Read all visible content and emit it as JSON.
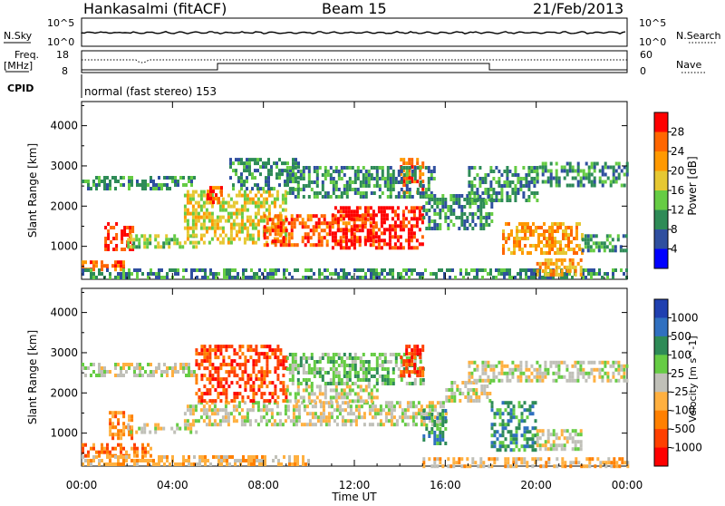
{
  "header": {
    "station": "Hankasalmi (fitACF)",
    "beam": "Beam 15",
    "date": "21/Feb/2013"
  },
  "aux_panels": {
    "nsky_label": "N.Sky",
    "nsearch_label": "N.Search",
    "freq_label_top": "Freq.",
    "freq_label_unit": "[MHz]",
    "nave_label": "Nave",
    "cpid_label": "CPID",
    "cpid_mode": "normal (fast stereo) 153",
    "noise_ticks_left": [
      "10^5",
      "10^0"
    ],
    "noise_ticks_right": [
      "10^5",
      "10^0"
    ],
    "freq_ticks_left": [
      "18",
      "8"
    ],
    "nave_ticks_right": [
      "60",
      "0"
    ]
  },
  "chart_data": [
    {
      "type": "heatmap",
      "panel": "power",
      "ylabel": "Slant Range [km]",
      "xlabel": "Time UT",
      "ylim": [
        180,
        4600
      ],
      "yticks": [
        1000,
        2000,
        3000,
        4000
      ],
      "xlim": [
        0,
        24
      ],
      "xticks": [
        "00:00",
        "04:00",
        "08:00",
        "12:00",
        "16:00",
        "20:00",
        "00:00"
      ],
      "colorbar": {
        "label": "Power [dB]",
        "ticks": [
          "4",
          "8",
          "12",
          "16",
          "20",
          "24",
          "28"
        ],
        "colors": [
          "#0000ff",
          "#2f4f9f",
          "#2e8b57",
          "#66cc44",
          "#e6c832",
          "#ff9900",
          "#ff6600",
          "#ff0000"
        ]
      },
      "scatter_bands": [
        {
          "t0": 0.0,
          "t1": 5.0,
          "r0": 2400,
          "r1": 2750,
          "level": 2
        },
        {
          "t0": 1.0,
          "t1": 2.3,
          "r0": 900,
          "r1": 1600,
          "level": 7
        },
        {
          "t0": 0.0,
          "t1": 2.0,
          "r0": 380,
          "r1": 650,
          "level": 6
        },
        {
          "t0": 2.0,
          "t1": 5.0,
          "r0": 950,
          "r1": 1300,
          "level": 3
        },
        {
          "t0": 4.5,
          "t1": 9.0,
          "r0": 1100,
          "r1": 2400,
          "level": 4
        },
        {
          "t0": 5.5,
          "t1": 6.2,
          "r0": 2100,
          "r1": 2500,
          "level": 6
        },
        {
          "t0": 6.5,
          "t1": 9.5,
          "r0": 2400,
          "r1": 3200,
          "level": 2
        },
        {
          "t0": 8.0,
          "t1": 13.0,
          "r0": 1000,
          "r1": 1800,
          "level": 6
        },
        {
          "t0": 11.0,
          "t1": 15.0,
          "r0": 1000,
          "r1": 2000,
          "level": 7
        },
        {
          "t0": 14.0,
          "t1": 15.0,
          "r0": 2300,
          "r1": 3200,
          "level": 6
        },
        {
          "t0": 9.0,
          "t1": 15.5,
          "r0": 2200,
          "r1": 3000,
          "level": 2
        },
        {
          "t0": 15.0,
          "t1": 18.0,
          "r0": 1400,
          "r1": 2300,
          "level": 2
        },
        {
          "t0": 17.0,
          "t1": 20.0,
          "r0": 2100,
          "r1": 3000,
          "level": 2
        },
        {
          "t0": 20.0,
          "t1": 24.0,
          "r0": 2500,
          "r1": 3100,
          "level": 2
        },
        {
          "t0": 18.5,
          "t1": 22.0,
          "r0": 800,
          "r1": 1600,
          "level": 5
        },
        {
          "t0": 22.0,
          "t1": 24.0,
          "r0": 900,
          "r1": 1300,
          "level": 2
        },
        {
          "t0": 0.0,
          "t1": 24.0,
          "r0": 200,
          "r1": 450,
          "level": 2
        },
        {
          "t0": 20.0,
          "t1": 22.0,
          "r0": 300,
          "r1": 700,
          "level": 5
        }
      ]
    },
    {
      "type": "heatmap",
      "panel": "velocity",
      "ylabel": "Slant Range [km]",
      "xlabel": "Time UT",
      "ylim": [
        180,
        4600
      ],
      "yticks": [
        1000,
        2000,
        3000,
        4000
      ],
      "xlim": [
        0,
        24
      ],
      "xticks": [
        "00:00",
        "04:00",
        "08:00",
        "12:00",
        "16:00",
        "20:00",
        "00:00"
      ],
      "colorbar": {
        "label": "Velocity [m s^-1]",
        "ticks": [
          "1000",
          "500",
          "100",
          "25",
          "-25",
          "-100",
          "-500",
          "-1000"
        ],
        "colors": [
          "#2040b0",
          "#3070c0",
          "#2e8b57",
          "#66cc44",
          "#c0c0b8",
          "#ffb040",
          "#ff8000",
          "#ff4000",
          "#ff0000"
        ]
      },
      "scatter_bands": [
        {
          "t0": 0.0,
          "t1": 5.0,
          "r0": 2400,
          "r1": 2750,
          "level": 4
        },
        {
          "t0": 1.2,
          "t1": 2.2,
          "r0": 900,
          "r1": 1550,
          "level": 6
        },
        {
          "t0": 0.0,
          "t1": 3.0,
          "r0": 400,
          "r1": 750,
          "level": 6
        },
        {
          "t0": 2.0,
          "t1": 5.0,
          "r0": 980,
          "r1": 1250,
          "level": 4
        },
        {
          "t0": 4.5,
          "t1": 16.0,
          "r0": 1250,
          "r1": 1800,
          "level": 4
        },
        {
          "t0": 5.0,
          "t1": 9.0,
          "r0": 1800,
          "r1": 3200,
          "level": 7
        },
        {
          "t0": 9.0,
          "t1": 13.0,
          "r0": 1800,
          "r1": 2200,
          "level": 4
        },
        {
          "t0": 9.0,
          "t1": 15.0,
          "r0": 2200,
          "r1": 3000,
          "level": 3
        },
        {
          "t0": 14.0,
          "t1": 15.0,
          "r0": 2400,
          "r1": 3200,
          "level": 7
        },
        {
          "t0": 15.0,
          "t1": 16.0,
          "r0": 700,
          "r1": 1600,
          "level": 2
        },
        {
          "t0": 16.0,
          "t1": 18.0,
          "r0": 1800,
          "r1": 2300,
          "level": 4
        },
        {
          "t0": 17.0,
          "t1": 24.0,
          "r0": 2300,
          "r1": 2800,
          "level": 4
        },
        {
          "t0": 18.0,
          "t1": 20.0,
          "r0": 600,
          "r1": 1800,
          "level": 2
        },
        {
          "t0": 20.0,
          "t1": 22.0,
          "r0": 600,
          "r1": 1100,
          "level": 4
        },
        {
          "t0": 0.0,
          "t1": 10.0,
          "r0": 200,
          "r1": 450,
          "level": 5
        },
        {
          "t0": 15.0,
          "t1": 24.0,
          "r0": 200,
          "r1": 400,
          "level": 5
        }
      ]
    }
  ]
}
